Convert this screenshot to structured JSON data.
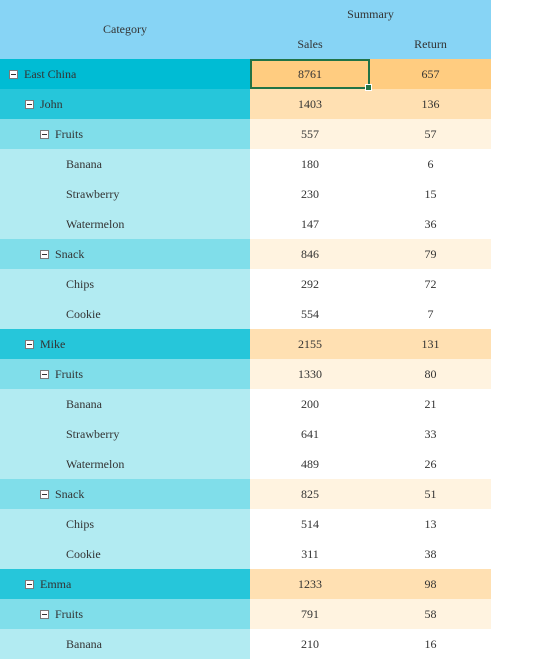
{
  "header": {
    "category": "Category",
    "summary": "Summary",
    "sales": "Sales",
    "return": "Return"
  },
  "rows": [
    {
      "level": 0,
      "label": "East China",
      "sales": "8761",
      "return": "657",
      "expandable": true
    },
    {
      "level": 1,
      "label": "John",
      "sales": "1403",
      "return": "136",
      "expandable": true
    },
    {
      "level": 2,
      "label": "Fruits",
      "sales": "557",
      "return": "57",
      "expandable": true
    },
    {
      "level": 3,
      "label": "Banana",
      "sales": "180",
      "return": "6",
      "expandable": false
    },
    {
      "level": 3,
      "label": "Strawberry",
      "sales": "230",
      "return": "15",
      "expandable": false
    },
    {
      "level": 3,
      "label": "Watermelon",
      "sales": "147",
      "return": "36",
      "expandable": false
    },
    {
      "level": 2,
      "label": "Snack",
      "sales": "846",
      "return": "79",
      "expandable": true
    },
    {
      "level": 3,
      "label": "Chips",
      "sales": "292",
      "return": "72",
      "expandable": false
    },
    {
      "level": 3,
      "label": "Cookie",
      "sales": "554",
      "return": "7",
      "expandable": false
    },
    {
      "level": 1,
      "label": "Mike",
      "sales": "2155",
      "return": "131",
      "expandable": true
    },
    {
      "level": 2,
      "label": "Fruits",
      "sales": "1330",
      "return": "80",
      "expandable": true
    },
    {
      "level": 3,
      "label": "Banana",
      "sales": "200",
      "return": "21",
      "expandable": false
    },
    {
      "level": 3,
      "label": "Strawberry",
      "sales": "641",
      "return": "33",
      "expandable": false
    },
    {
      "level": 3,
      "label": "Watermelon",
      "sales": "489",
      "return": "26",
      "expandable": false
    },
    {
      "level": 2,
      "label": "Snack",
      "sales": "825",
      "return": "51",
      "expandable": true
    },
    {
      "level": 3,
      "label": "Chips",
      "sales": "514",
      "return": "13",
      "expandable": false
    },
    {
      "level": 3,
      "label": "Cookie",
      "sales": "311",
      "return": "38",
      "expandable": false
    },
    {
      "level": 1,
      "label": "Emma",
      "sales": "1233",
      "return": "98",
      "expandable": true
    },
    {
      "level": 2,
      "label": "Fruits",
      "sales": "791",
      "return": "58",
      "expandable": true
    },
    {
      "level": 3,
      "label": "Banana",
      "sales": "210",
      "return": "16",
      "expandable": false
    }
  ],
  "selection": {
    "row": 0,
    "column": "sales"
  },
  "icons": {
    "toggle": "collapse-minus-icon"
  },
  "colors": {
    "header_bg": "#87d4f5",
    "level0_category": "#00bcd4",
    "level1_category": "#26c6da",
    "level2_category": "#80deea",
    "level3_category": "#b2ebf2",
    "level0_values": "#ffcc80",
    "level1_values": "#ffe0b2",
    "level2_values": "#fff3e0",
    "level3_values": "#ffffff",
    "selection_border": "#217346"
  }
}
